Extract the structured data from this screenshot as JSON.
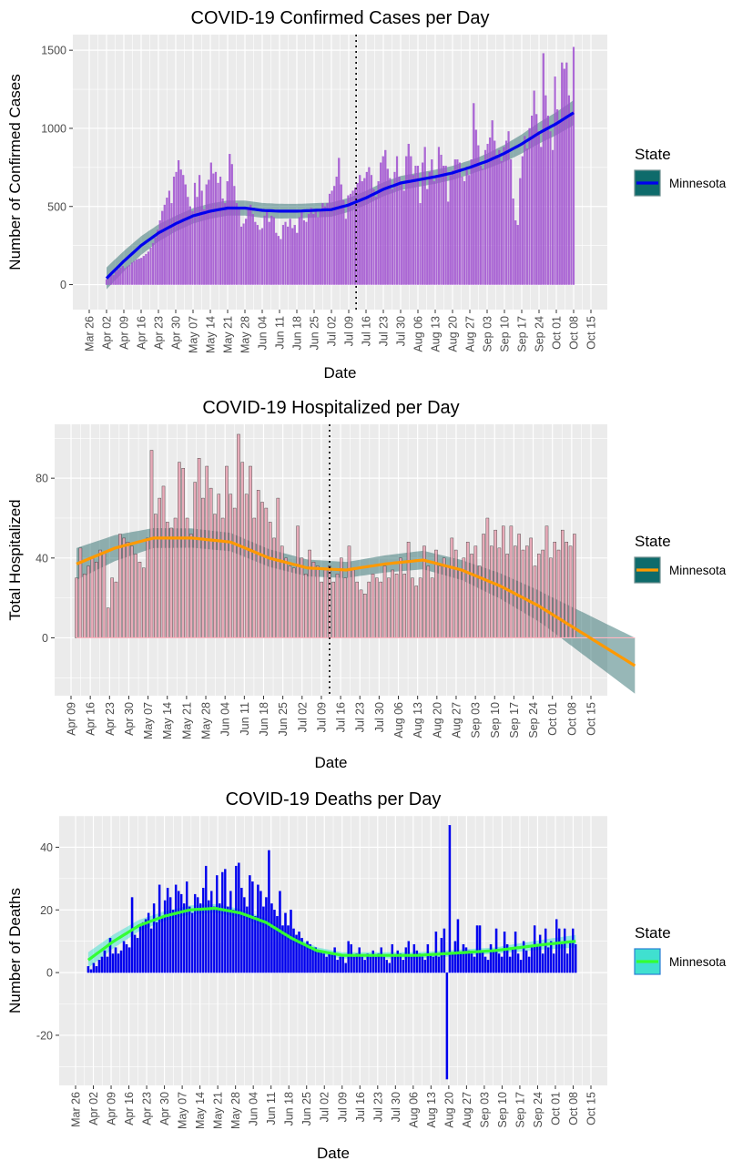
{
  "chart_data": [
    {
      "type": "bar",
      "title": "COVID-19 Confirmed Cases per Day",
      "xlabel": "Date",
      "ylabel": "Number of Confirmed Cases",
      "x_tick_labels": [
        "Mar 26",
        "Apr 02",
        "Apr 09",
        "Apr 16",
        "Apr 23",
        "Apr 30",
        "May 07",
        "May 14",
        "May 21",
        "May 28",
        "Jun 04",
        "Jun 11",
        "Jun 18",
        "Jun 25",
        "Jul 02",
        "Jul 09",
        "Jul 16",
        "Jul 23",
        "Jul 30",
        "Aug 06",
        "Aug 13",
        "Aug 20",
        "Aug 27",
        "Sep 03",
        "Sep 10",
        "Sep 17",
        "Sep 24",
        "Oct 01",
        "Oct 08",
        "Oct 15"
      ],
      "y_ticks": [
        0,
        500,
        1000,
        1500
      ],
      "ylim": [
        -160,
        1600
      ],
      "bar_color": "#a050d0",
      "smooth_color": "#0000ee",
      "band_color": "#2f6f6f",
      "vline_date": "Jul 12",
      "legend": {
        "title": "State",
        "label": "Minnesota",
        "fill": "#0e6b6b",
        "line": "#0000ee"
      },
      "x_dates": [
        "Apr 02",
        "Oct 08"
      ],
      "daily_values": [
        33,
        55,
        68,
        60,
        82,
        95,
        108,
        118,
        105,
        115,
        125,
        140,
        150,
        160,
        165,
        170,
        182,
        195,
        210,
        235,
        265,
        300,
        350,
        410,
        470,
        510,
        555,
        600,
        520,
        690,
        720,
        795,
        735,
        700,
        640,
        560,
        500,
        470,
        650,
        560,
        700,
        600,
        480,
        640,
        670,
        780,
        710,
        720,
        650,
        690,
        550,
        520,
        660,
        835,
        770,
        630,
        520,
        480,
        370,
        390,
        420,
        480,
        510,
        450,
        400,
        380,
        350,
        360,
        440,
        480,
        400,
        440,
        430,
        330,
        310,
        290,
        380,
        400,
        370,
        420,
        360,
        380,
        330,
        430,
        470,
        410,
        400,
        450,
        490,
        450,
        470,
        430,
        480,
        520,
        500,
        520,
        580,
        600,
        630,
        690,
        810,
        640,
        540,
        420,
        570,
        580,
        600,
        620,
        650,
        700,
        660,
        680,
        720,
        750,
        700,
        610,
        560,
        660,
        780,
        820,
        860,
        740,
        680,
        610,
        720,
        820,
        690,
        640,
        600,
        820,
        900,
        820,
        700,
        760,
        760,
        520,
        780,
        880,
        610,
        720,
        800,
        660,
        700,
        880,
        830,
        760,
        760,
        530,
        700,
        730,
        800,
        800,
        780,
        690,
        660,
        730,
        700,
        800,
        1160,
        990,
        890,
        760,
        740,
        860,
        900,
        940,
        1050,
        920,
        830,
        860,
        790,
        880,
        920,
        980,
        800,
        550,
        410,
        380,
        680,
        820,
        950,
        870,
        1000,
        1080,
        1240,
        1090,
        980,
        880,
        1480,
        1210,
        1080,
        980,
        860,
        1330,
        1120,
        1050,
        1420,
        1380,
        1420,
        1210,
        1100,
        1520
      ],
      "smooth": [
        [
          0,
          40
        ],
        [
          7,
          150
        ],
        [
          14,
          250
        ],
        [
          21,
          330
        ],
        [
          28,
          390
        ],
        [
          35,
          440
        ],
        [
          42,
          470
        ],
        [
          49,
          490
        ],
        [
          56,
          490
        ],
        [
          63,
          475
        ],
        [
          70,
          470
        ],
        [
          77,
          470
        ],
        [
          84,
          475
        ],
        [
          91,
          480
        ],
        [
          98,
          510
        ],
        [
          105,
          555
        ],
        [
          112,
          610
        ],
        [
          119,
          650
        ],
        [
          126,
          670
        ],
        [
          133,
          690
        ],
        [
          140,
          715
        ],
        [
          147,
          750
        ],
        [
          154,
          790
        ],
        [
          161,
          840
        ],
        [
          168,
          900
        ],
        [
          175,
          970
        ],
        [
          182,
          1030
        ],
        [
          189,
          1100
        ]
      ],
      "band_half_width": [
        [
          0,
          70
        ],
        [
          28,
          50
        ],
        [
          98,
          45
        ],
        [
          150,
          45
        ],
        [
          189,
          80
        ]
      ]
    },
    {
      "type": "bar",
      "title": "COVID-19 Hospitalized per Day",
      "xlabel": "Date",
      "ylabel": "Total Hospitalized",
      "x_tick_labels": [
        "Apr 09",
        "Apr 16",
        "Apr 23",
        "Apr 30",
        "May 07",
        "May 14",
        "May 21",
        "May 28",
        "Jun 04",
        "Jun 11",
        "Jun 18",
        "Jun 25",
        "Jul 02",
        "Jul 09",
        "Jul 16",
        "Jul 23",
        "Jul 30",
        "Aug 06",
        "Aug 13",
        "Aug 20",
        "Aug 27",
        "Sep 03",
        "Sep 10",
        "Sep 17",
        "Sep 24",
        "Oct 01",
        "Oct 08",
        "Oct 15"
      ],
      "y_ticks": [
        0,
        40,
        80
      ],
      "ylim": [
        -29,
        107
      ],
      "bar_color": "#e8a0b0",
      "smooth_color": "#ff9900",
      "band_color": "#2f6f6f",
      "vline_date": "Jul 12",
      "legend": {
        "title": "State",
        "label": "Minnesota",
        "fill": "#0e6b6b",
        "line": "#ff9900"
      },
      "x_dates": [
        "Apr 11",
        "Oct 09"
      ],
      "daily_values": [
        30,
        45,
        32,
        36,
        40,
        38,
        44,
        43,
        15,
        30,
        28,
        52,
        50,
        48,
        46,
        42,
        38,
        35,
        50,
        94,
        62,
        70,
        76,
        58,
        55,
        60,
        88,
        85,
        60,
        52,
        78,
        90,
        70,
        86,
        75,
        62,
        72,
        60,
        86,
        72,
        65,
        102,
        88,
        72,
        86,
        60,
        74,
        68,
        65,
        58,
        50,
        70,
        46,
        40,
        36,
        35,
        56,
        40,
        32,
        44,
        38,
        36,
        28,
        34,
        36,
        28,
        32,
        40,
        30,
        46,
        34,
        28,
        24,
        22,
        28,
        32,
        30,
        28,
        36,
        30,
        34,
        32,
        40,
        32,
        48,
        30,
        26,
        30,
        46,
        36,
        30,
        44,
        36,
        40,
        36,
        50,
        44,
        34,
        40,
        48,
        42,
        46,
        36,
        52,
        60,
        46,
        54,
        45,
        56,
        42,
        56,
        46,
        52,
        44,
        46,
        50,
        36,
        42,
        44,
        56,
        40,
        48,
        44,
        54,
        48,
        46,
        52
      ],
      "smooth": [
        [
          0,
          37
        ],
        [
          14,
          45
        ],
        [
          28,
          50
        ],
        [
          42,
          50
        ],
        [
          56,
          48
        ],
        [
          70,
          40
        ],
        [
          84,
          35
        ],
        [
          98,
          34
        ],
        [
          112,
          37
        ],
        [
          126,
          39
        ],
        [
          140,
          34
        ],
        [
          154,
          26
        ],
        [
          168,
          16
        ],
        [
          182,
          4
        ],
        [
          196,
          -8
        ],
        [
          203,
          -14
        ]
      ],
      "band_half_width": [
        [
          0,
          8
        ],
        [
          28,
          5
        ],
        [
          100,
          4
        ],
        [
          140,
          5
        ],
        [
          170,
          8
        ],
        [
          203,
          14
        ]
      ]
    },
    {
      "type": "bar",
      "title": "COVID-19 Deaths per Day",
      "xlabel": "Date",
      "ylabel": "Number of Deaths",
      "x_tick_labels": [
        "Mar 26",
        "Apr 02",
        "Apr 09",
        "Apr 16",
        "Apr 23",
        "Apr 30",
        "May 07",
        "May 14",
        "May 21",
        "May 28",
        "Jun 04",
        "Jun 11",
        "Jun 18",
        "Jun 25",
        "Jul 02",
        "Jul 09",
        "Jul 16",
        "Jul 23",
        "Jul 30",
        "Aug 06",
        "Aug 13",
        "Aug 20",
        "Aug 27",
        "Sep 03",
        "Sep 10",
        "Sep 17",
        "Sep 24",
        "Oct 01",
        "Oct 08",
        "Oct 15"
      ],
      "y_ticks": [
        -20,
        0,
        20,
        40
      ],
      "ylim": [
        -36,
        50
      ],
      "bar_color": "#0000ee",
      "smooth_color": "#33ff33",
      "band_color": "#40e0d0",
      "legend": {
        "title": "State",
        "label": "Minnesota",
        "fill": "#40e0d0",
        "line": "#33ff33"
      },
      "x_dates": [
        "Mar 31",
        "Oct 09"
      ],
      "daily_values": [
        2,
        1,
        3,
        2,
        4,
        5,
        7,
        5,
        11,
        6,
        8,
        6,
        7,
        10,
        9,
        8,
        24,
        12,
        11,
        15,
        16,
        17,
        19,
        14,
        22,
        16,
        28,
        18,
        23,
        27,
        24,
        20,
        28,
        26,
        25,
        22,
        29,
        21,
        19,
        25,
        24,
        22,
        27,
        34,
        23,
        26,
        21,
        31,
        22,
        32,
        33,
        21,
        26,
        20,
        34,
        35,
        27,
        24,
        21,
        31,
        29,
        18,
        28,
        26,
        21,
        24,
        39,
        22,
        20,
        18,
        26,
        15,
        19,
        15,
        20,
        14,
        12,
        13,
        11,
        9,
        10,
        9,
        8,
        8,
        7,
        7,
        6,
        5,
        6,
        6,
        8,
        4,
        5,
        5,
        3,
        10,
        9,
        5,
        6,
        8,
        5,
        4,
        6,
        5,
        7,
        5,
        6,
        8,
        5,
        4,
        3,
        9,
        5,
        7,
        6,
        4,
        8,
        10,
        5,
        9,
        7,
        6,
        5,
        4,
        9,
        6,
        5,
        13,
        5,
        11,
        14,
        -34,
        47,
        6,
        10,
        17,
        6,
        9,
        8,
        7,
        6,
        5,
        15,
        15,
        7,
        5,
        4,
        9,
        7,
        14,
        6,
        5,
        13,
        9,
        5,
        8,
        13,
        6,
        4,
        10,
        7,
        5,
        8,
        15,
        9,
        12,
        6,
        14,
        8,
        10,
        6,
        17,
        14,
        9,
        14,
        6,
        10,
        14,
        9
      ],
      "smooth": [
        [
          0,
          4
        ],
        [
          10,
          10
        ],
        [
          20,
          15
        ],
        [
          30,
          18
        ],
        [
          40,
          20
        ],
        [
          50,
          20.5
        ],
        [
          60,
          19
        ],
        [
          70,
          16
        ],
        [
          80,
          11
        ],
        [
          90,
          7
        ],
        [
          100,
          5.5
        ],
        [
          110,
          5.5
        ],
        [
          120,
          5.5
        ],
        [
          130,
          5.5
        ],
        [
          140,
          6
        ],
        [
          150,
          6.5
        ],
        [
          160,
          7
        ],
        [
          170,
          8
        ],
        [
          180,
          9
        ],
        [
          192,
          10
        ]
      ],
      "band_half_width": [
        [
          0,
          2.5
        ],
        [
          30,
          1.5
        ],
        [
          100,
          1
        ],
        [
          160,
          1
        ],
        [
          192,
          2
        ]
      ]
    }
  ]
}
